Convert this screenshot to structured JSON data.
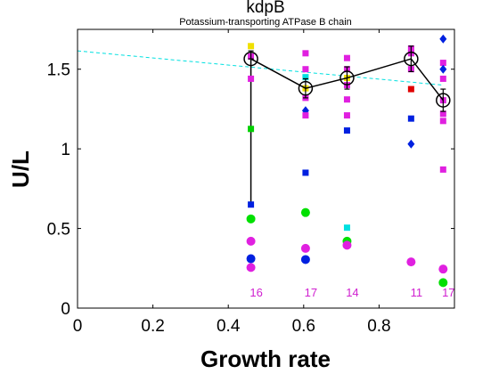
{
  "chart_data": {
    "type": "scatter",
    "title": "kdpB",
    "subtitle": "Potassium-transporting ATPase B chain",
    "xlabel": "Growth rate",
    "ylabel": "U/L",
    "xlim": [
      0,
      1.0
    ],
    "ylim": [
      0,
      1.75
    ],
    "xticks": [
      0,
      0.2,
      0.4,
      0.6,
      0.8
    ],
    "xtick_labels": [
      "0",
      "0.2",
      "0.4",
      "0.6",
      "0.8"
    ],
    "yticks": [
      0,
      0.5,
      1,
      1.5
    ],
    "ytick_labels": [
      "0",
      "0.5",
      "1",
      "1.5"
    ],
    "grid": false,
    "trend_line": {
      "color": "#00e0e0",
      "style": "dashed",
      "points": [
        [
          0,
          1.615
        ],
        [
          0.97,
          1.4
        ]
      ]
    },
    "mean_series": {
      "color": "#000000",
      "points": [
        {
          "x": 0.46,
          "y": 1.565,
          "err_low": 0.0,
          "err_high": 0.05
        },
        {
          "x": 0.605,
          "y": 1.38,
          "err_low": 0.06,
          "err_high": 0.06
        },
        {
          "x": 0.715,
          "y": 1.445,
          "err_low": 0.07,
          "err_high": 0.07
        },
        {
          "x": 0.885,
          "y": 1.565,
          "err_low": 0.08,
          "err_high": 0.08
        },
        {
          "x": 0.97,
          "y": 1.305,
          "err_low": 0.07,
          "err_high": 0.07
        }
      ]
    },
    "vertical_range": {
      "x": 0.46,
      "y_from": 0.65,
      "y_to": 1.565
    },
    "points": [
      {
        "x": 0.46,
        "y": 1.645,
        "color": "#f0e000",
        "shape": "square"
      },
      {
        "x": 0.46,
        "y": 1.58,
        "color": "#e020e0",
        "shape": "square"
      },
      {
        "x": 0.46,
        "y": 1.44,
        "color": "#e020e0",
        "shape": "square"
      },
      {
        "x": 0.46,
        "y": 1.125,
        "color": "#00d000",
        "shape": "square"
      },
      {
        "x": 0.46,
        "y": 0.65,
        "color": "#0020e0",
        "shape": "square"
      },
      {
        "x": 0.46,
        "y": 0.56,
        "color": "#00e000",
        "shape": "circle"
      },
      {
        "x": 0.46,
        "y": 0.42,
        "color": "#e020e0",
        "shape": "circle"
      },
      {
        "x": 0.46,
        "y": 0.31,
        "color": "#0020e0",
        "shape": "circle"
      },
      {
        "x": 0.46,
        "y": 0.255,
        "color": "#e020e0",
        "shape": "circle"
      },
      {
        "x": 0.605,
        "y": 1.6,
        "color": "#e020e0",
        "shape": "square"
      },
      {
        "x": 0.605,
        "y": 1.5,
        "color": "#e020e0",
        "shape": "square"
      },
      {
        "x": 0.605,
        "y": 1.45,
        "color": "#00e0e0",
        "shape": "square"
      },
      {
        "x": 0.605,
        "y": 1.38,
        "color": "#f0e000",
        "shape": "square"
      },
      {
        "x": 0.605,
        "y": 1.32,
        "color": "#e020e0",
        "shape": "square"
      },
      {
        "x": 0.605,
        "y": 1.24,
        "color": "#0020e0",
        "shape": "diamond"
      },
      {
        "x": 0.605,
        "y": 1.21,
        "color": "#e020e0",
        "shape": "square"
      },
      {
        "x": 0.605,
        "y": 0.85,
        "color": "#0020e0",
        "shape": "square"
      },
      {
        "x": 0.605,
        "y": 0.6,
        "color": "#00e000",
        "shape": "circle"
      },
      {
        "x": 0.605,
        "y": 0.375,
        "color": "#e020e0",
        "shape": "circle"
      },
      {
        "x": 0.605,
        "y": 0.305,
        "color": "#0020e0",
        "shape": "circle"
      },
      {
        "x": 0.715,
        "y": 1.57,
        "color": "#e020e0",
        "shape": "square"
      },
      {
        "x": 0.715,
        "y": 1.5,
        "color": "#e020e0",
        "shape": "square"
      },
      {
        "x": 0.715,
        "y": 1.445,
        "color": "#f0e000",
        "shape": "square"
      },
      {
        "x": 0.715,
        "y": 1.4,
        "color": "#e020e0",
        "shape": "square"
      },
      {
        "x": 0.715,
        "y": 1.31,
        "color": "#e020e0",
        "shape": "square"
      },
      {
        "x": 0.715,
        "y": 1.21,
        "color": "#e020e0",
        "shape": "square"
      },
      {
        "x": 0.715,
        "y": 1.115,
        "color": "#0020e0",
        "shape": "square"
      },
      {
        "x": 0.715,
        "y": 0.505,
        "color": "#00e0e0",
        "shape": "square"
      },
      {
        "x": 0.715,
        "y": 0.42,
        "color": "#00e000",
        "shape": "circle"
      },
      {
        "x": 0.715,
        "y": 0.395,
        "color": "#e020e0",
        "shape": "circle"
      },
      {
        "x": 0.885,
        "y": 1.63,
        "color": "#e020e0",
        "shape": "square"
      },
      {
        "x": 0.885,
        "y": 1.6,
        "color": "#e020e0",
        "shape": "square"
      },
      {
        "x": 0.885,
        "y": 1.5,
        "color": "#e020e0",
        "shape": "square"
      },
      {
        "x": 0.885,
        "y": 1.375,
        "color": "#e00000",
        "shape": "square"
      },
      {
        "x": 0.885,
        "y": 1.19,
        "color": "#0020e0",
        "shape": "square"
      },
      {
        "x": 0.885,
        "y": 1.03,
        "color": "#0020e0",
        "shape": "diamond"
      },
      {
        "x": 0.885,
        "y": 0.29,
        "color": "#e020e0",
        "shape": "circle"
      },
      {
        "x": 0.97,
        "y": 1.69,
        "color": "#0020e0",
        "shape": "diamond"
      },
      {
        "x": 0.97,
        "y": 1.54,
        "color": "#e020e0",
        "shape": "square"
      },
      {
        "x": 0.97,
        "y": 1.5,
        "color": "#0020e0",
        "shape": "diamond"
      },
      {
        "x": 0.97,
        "y": 1.44,
        "color": "#e020e0",
        "shape": "square"
      },
      {
        "x": 0.97,
        "y": 1.305,
        "color": "#e020e0",
        "shape": "square"
      },
      {
        "x": 0.97,
        "y": 1.22,
        "color": "#e020e0",
        "shape": "square"
      },
      {
        "x": 0.97,
        "y": 1.175,
        "color": "#e020e0",
        "shape": "square"
      },
      {
        "x": 0.97,
        "y": 0.87,
        "color": "#e020e0",
        "shape": "square"
      },
      {
        "x": 0.97,
        "y": 0.245,
        "color": "#e020e0",
        "shape": "circle"
      },
      {
        "x": 0.97,
        "y": 0.16,
        "color": "#00e000",
        "shape": "circle"
      }
    ],
    "counts": [
      {
        "x": 0.46,
        "label": "16"
      },
      {
        "x": 0.605,
        "label": "17"
      },
      {
        "x": 0.715,
        "label": "14"
      },
      {
        "x": 0.885,
        "label": "11"
      },
      {
        "x": 0.97,
        "label": "17"
      }
    ],
    "count_color": "#d020d0"
  }
}
